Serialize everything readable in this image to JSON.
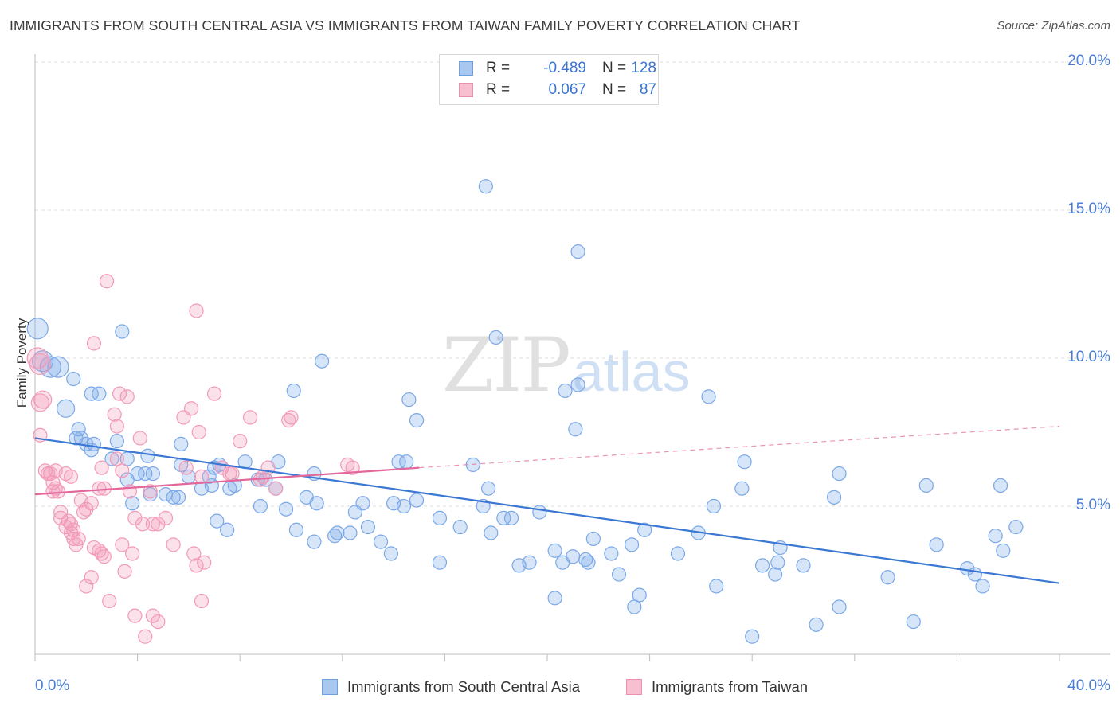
{
  "header": {
    "title": "IMMIGRANTS FROM SOUTH CENTRAL ASIA VS IMMIGRANTS FROM TAIWAN FAMILY POVERTY CORRELATION CHART",
    "source": "Source: ZipAtlas.com"
  },
  "watermark": {
    "zip": "ZIP",
    "atlas": "atlas"
  },
  "legend": {
    "rows": [
      {
        "r_label": "R =",
        "r_value": "-0.489",
        "n_label": "N =",
        "n_value": "128",
        "color": "#a8c8f0",
        "border": "#6f9fe0"
      },
      {
        "r_label": "R =",
        "r_value": "0.067",
        "n_label": "N =",
        "n_value": "87",
        "color": "#f8bfd0",
        "border": "#ee8fae"
      }
    ]
  },
  "bottom_legend": [
    {
      "label": "Immigrants from South Central Asia",
      "color": "#a8c8f0",
      "border": "#6f9fe0"
    },
    {
      "label": "Immigrants from Taiwan",
      "color": "#f8bfd0",
      "border": "#ee8fae"
    }
  ],
  "chart_data": {
    "type": "scatter",
    "title": "IMMIGRANTS FROM SOUTH CENTRAL ASIA VS IMMIGRANTS FROM TAIWAN FAMILY POVERTY CORRELATION CHART",
    "xlabel": "",
    "ylabel": "Family Poverty",
    "xlim": [
      0,
      40
    ],
    "ylim": [
      0,
      20
    ],
    "x_tick_labels": [
      "0.0%",
      "40.0%"
    ],
    "y_tick_labels": [
      "5.0%",
      "10.0%",
      "15.0%",
      "20.0%"
    ],
    "y_ticks": [
      5,
      10,
      15,
      20
    ],
    "grid": true,
    "legend_position": "top-center",
    "series": [
      {
        "name": "Immigrants from South Central Asia",
        "color": "#7aa8e8",
        "trend": {
          "x0": 0,
          "y0": 7.3,
          "x1": 40,
          "y1": 2.4,
          "style": "solid",
          "line_color": "#3a78d4"
        },
        "points": [
          [
            0.1,
            11.0
          ],
          [
            0.3,
            9.9
          ],
          [
            0.6,
            9.7
          ],
          [
            0.9,
            9.7
          ],
          [
            1.5,
            9.3
          ],
          [
            1.2,
            8.3
          ],
          [
            2.2,
            8.8
          ],
          [
            2.5,
            8.8
          ],
          [
            1.7,
            7.6
          ],
          [
            1.6,
            7.3
          ],
          [
            2.3,
            7.1
          ],
          [
            2.2,
            6.9
          ],
          [
            3.2,
            7.2
          ],
          [
            3.4,
            10.9
          ],
          [
            3.0,
            6.6
          ],
          [
            3.6,
            6.6
          ],
          [
            4.4,
            6.7
          ],
          [
            3.6,
            5.9
          ],
          [
            4.0,
            6.1
          ],
          [
            4.3,
            6.1
          ],
          [
            4.6,
            6.1
          ],
          [
            5.7,
            6.4
          ],
          [
            6.0,
            6.0
          ],
          [
            6.8,
            6.0
          ],
          [
            7.0,
            6.3
          ],
          [
            7.2,
            6.4
          ],
          [
            8.2,
            6.5
          ],
          [
            9.5,
            6.5
          ],
          [
            10.9,
            6.1
          ],
          [
            3.8,
            5.1
          ],
          [
            4.5,
            5.4
          ],
          [
            5.1,
            5.4
          ],
          [
            5.4,
            5.3
          ],
          [
            5.6,
            5.3
          ],
          [
            6.5,
            5.6
          ],
          [
            6.9,
            5.7
          ],
          [
            7.6,
            5.6
          ],
          [
            7.8,
            5.7
          ],
          [
            8.7,
            5.9
          ],
          [
            9.0,
            5.9
          ],
          [
            9.4,
            5.6
          ],
          [
            9.8,
            4.9
          ],
          [
            10.6,
            5.3
          ],
          [
            11.0,
            5.1
          ],
          [
            8.8,
            5.0
          ],
          [
            5.7,
            7.1
          ],
          [
            7.1,
            4.5
          ],
          [
            7.5,
            4.2
          ],
          [
            10.2,
            4.2
          ],
          [
            10.9,
            3.8
          ],
          [
            11.8,
            4.1
          ],
          [
            11.7,
            4.0
          ],
          [
            12.3,
            4.1
          ],
          [
            12.5,
            4.8
          ],
          [
            12.8,
            5.1
          ],
          [
            13.5,
            3.8
          ],
          [
            13.9,
            3.4
          ],
          [
            14.4,
            5.0
          ],
          [
            14.9,
            5.2
          ],
          [
            13.0,
            4.3
          ],
          [
            15.8,
            4.6
          ],
          [
            15.8,
            3.1
          ],
          [
            14.0,
            5.1
          ],
          [
            16.6,
            4.3
          ],
          [
            17.8,
            4.1
          ],
          [
            17.5,
            5.0
          ],
          [
            17.7,
            5.6
          ],
          [
            18.3,
            4.6
          ],
          [
            18.6,
            4.6
          ],
          [
            18.9,
            3.0
          ],
          [
            19.3,
            3.1
          ],
          [
            19.7,
            4.8
          ],
          [
            20.3,
            3.5
          ],
          [
            20.3,
            1.9
          ],
          [
            20.6,
            3.1
          ],
          [
            21.0,
            3.3
          ],
          [
            21.6,
            3.1
          ],
          [
            21.8,
            3.9
          ],
          [
            21.1,
            7.6
          ],
          [
            21.5,
            3.2
          ],
          [
            22.5,
            3.4
          ],
          [
            22.8,
            2.7
          ],
          [
            23.3,
            3.7
          ],
          [
            23.8,
            4.2
          ],
          [
            23.4,
            1.6
          ],
          [
            23.6,
            2.0
          ],
          [
            25.1,
            3.4
          ],
          [
            25.9,
            4.1
          ],
          [
            26.6,
            2.3
          ],
          [
            26.5,
            5.0
          ],
          [
            28.0,
            0.6
          ],
          [
            26.3,
            8.7
          ],
          [
            27.7,
            6.5
          ],
          [
            27.6,
            5.6
          ],
          [
            28.4,
            3.0
          ],
          [
            29.1,
            3.6
          ],
          [
            29.0,
            3.1
          ],
          [
            28.9,
            2.7
          ],
          [
            30.0,
            3.0
          ],
          [
            31.2,
            5.3
          ],
          [
            31.4,
            6.1
          ],
          [
            30.5,
            1.0
          ],
          [
            31.4,
            1.6
          ],
          [
            33.3,
            2.6
          ],
          [
            34.3,
            1.1
          ],
          [
            34.8,
            5.7
          ],
          [
            35.2,
            3.7
          ],
          [
            36.4,
            2.9
          ],
          [
            36.7,
            2.7
          ],
          [
            37.0,
            2.3
          ],
          [
            37.5,
            4.0
          ],
          [
            37.7,
            5.7
          ],
          [
            37.8,
            3.5
          ],
          [
            38.3,
            4.3
          ],
          [
            21.2,
            13.6
          ],
          [
            17.6,
            15.8
          ],
          [
            18.0,
            10.7
          ],
          [
            11.2,
            9.9
          ],
          [
            10.1,
            8.9
          ],
          [
            14.6,
            8.6
          ],
          [
            14.9,
            7.9
          ],
          [
            20.7,
            8.9
          ],
          [
            21.2,
            9.1
          ],
          [
            14.2,
            6.5
          ],
          [
            14.5,
            6.5
          ],
          [
            17.1,
            6.4
          ],
          [
            1.8,
            7.3
          ],
          [
            2.0,
            7.1
          ]
        ]
      },
      {
        "name": "Immigrants from Taiwan",
        "color": "#f29ab8",
        "trend": {
          "x0": 0,
          "y0": 5.4,
          "x1": 15.0,
          "y1": 6.3,
          "style": "solid",
          "line_color": "#e2679a",
          "ext_x1": 40,
          "ext_y1": 7.7,
          "ext_style": "dashed"
        },
        "points": [
          [
            0.1,
            10.0
          ],
          [
            0.2,
            9.8
          ],
          [
            0.3,
            8.6
          ],
          [
            0.2,
            8.5
          ],
          [
            0.2,
            7.4
          ],
          [
            0.4,
            6.2
          ],
          [
            0.5,
            6.1
          ],
          [
            0.6,
            6.1
          ],
          [
            0.7,
            5.8
          ],
          [
            0.8,
            5.6
          ],
          [
            0.9,
            5.5
          ],
          [
            0.7,
            5.5
          ],
          [
            1.0,
            4.8
          ],
          [
            1.3,
            4.5
          ],
          [
            1.4,
            4.4
          ],
          [
            1.2,
            4.3
          ],
          [
            1.4,
            4.1
          ],
          [
            1.5,
            3.9
          ],
          [
            1.6,
            3.7
          ],
          [
            1.8,
            5.2
          ],
          [
            1.9,
            4.8
          ],
          [
            2.0,
            4.9
          ],
          [
            2.2,
            5.1
          ],
          [
            1.2,
            6.1
          ],
          [
            1.4,
            6.0
          ],
          [
            2.3,
            3.6
          ],
          [
            2.5,
            3.5
          ],
          [
            2.6,
            3.4
          ],
          [
            2.7,
            3.3
          ],
          [
            2.5,
            5.6
          ],
          [
            2.3,
            10.5
          ],
          [
            2.8,
            12.6
          ],
          [
            3.1,
            8.1
          ],
          [
            3.2,
            7.7
          ],
          [
            3.3,
            8.8
          ],
          [
            3.6,
            8.7
          ],
          [
            3.2,
            6.6
          ],
          [
            3.4,
            6.2
          ],
          [
            3.7,
            5.5
          ],
          [
            3.9,
            4.6
          ],
          [
            4.2,
            4.4
          ],
          [
            4.6,
            4.4
          ],
          [
            4.8,
            4.4
          ],
          [
            5.1,
            4.6
          ],
          [
            4.5,
            5.5
          ],
          [
            4.1,
            7.3
          ],
          [
            2.7,
            5.6
          ],
          [
            2.6,
            6.3
          ],
          [
            2.2,
            2.6
          ],
          [
            2.0,
            2.3
          ],
          [
            2.9,
            1.8
          ],
          [
            3.5,
            2.8
          ],
          [
            3.9,
            1.3
          ],
          [
            4.6,
            1.3
          ],
          [
            4.8,
            1.1
          ],
          [
            3.4,
            3.7
          ],
          [
            3.8,
            3.4
          ],
          [
            5.4,
            3.7
          ],
          [
            6.2,
            3.4
          ],
          [
            6.3,
            3.0
          ],
          [
            6.6,
            3.1
          ],
          [
            6.5,
            1.8
          ],
          [
            6.3,
            11.6
          ],
          [
            6.1,
            8.3
          ],
          [
            5.8,
            8.0
          ],
          [
            6.4,
            7.5
          ],
          [
            7.0,
            8.8
          ],
          [
            7.3,
            6.3
          ],
          [
            7.7,
            6.1
          ],
          [
            8.0,
            7.2
          ],
          [
            8.4,
            8.0
          ],
          [
            8.8,
            5.9
          ],
          [
            9.1,
            6.3
          ],
          [
            9.4,
            5.6
          ],
          [
            9.9,
            7.9
          ],
          [
            10.0,
            8.0
          ],
          [
            5.9,
            6.3
          ],
          [
            6.5,
            6.0
          ],
          [
            7.6,
            6.1
          ],
          [
            8.9,
            6.0
          ],
          [
            12.2,
            6.4
          ],
          [
            12.4,
            6.3
          ],
          [
            1.0,
            4.6
          ],
          [
            1.5,
            4.2
          ],
          [
            0.8,
            6.2
          ],
          [
            1.7,
            3.9
          ],
          [
            4.3,
            0.6
          ]
        ]
      }
    ]
  }
}
